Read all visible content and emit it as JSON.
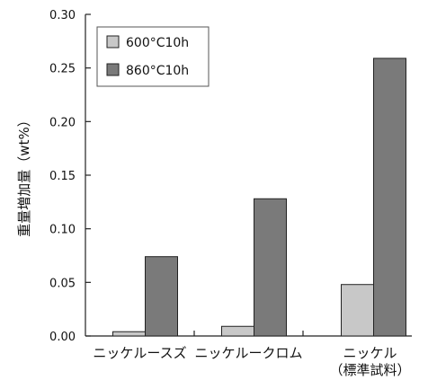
{
  "chart_data": {
    "type": "bar",
    "title": "",
    "xlabel": "",
    "ylabel": "重量増加量（wt%）",
    "ylim": [
      0,
      0.3
    ],
    "yticks": [
      "0.00",
      "0.05",
      "0.10",
      "0.15",
      "0.20",
      "0.25",
      "0.30"
    ],
    "categories": [
      {
        "line1": "ニッケルースズ",
        "line2": ""
      },
      {
        "line1": "ニッケルークロム",
        "line2": ""
      },
      {
        "line1": "ニッケル",
        "line2": "（標準試料）"
      }
    ],
    "series": [
      {
        "name": "600°C10h",
        "color": "#c8c8c8",
        "values": [
          0.004,
          0.009,
          0.048
        ]
      },
      {
        "name": "860°C10h",
        "color": "#7a7a7a",
        "values": [
          0.074,
          0.128,
          0.259
        ]
      }
    ],
    "legend": "top-left",
    "grid": false
  }
}
